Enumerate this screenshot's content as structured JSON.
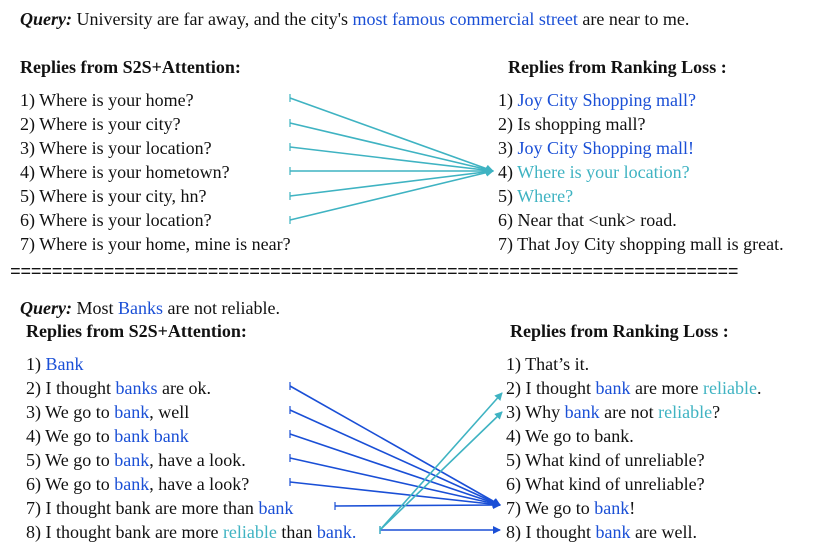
{
  "colors": {
    "blue": "#1a4fd6",
    "teal": "#3fb3c2",
    "text": "#111111"
  },
  "top": {
    "query_label": "Query:",
    "query_segments": [
      {
        "text": "University are far away, and the city's ",
        "color": ""
      },
      {
        "text": "most famous commercial street",
        "color": "b"
      },
      {
        "text": " are near to me.",
        "color": ""
      }
    ],
    "left_header": "Replies from S2S+Attention:",
    "right_header": "Replies from Ranking Loss :",
    "left_items": [
      [
        {
          "text": "1) Where is your home?",
          "color": ""
        }
      ],
      [
        {
          "text": "2) Where is your city?",
          "color": ""
        }
      ],
      [
        {
          "text": "3) Where is your location?",
          "color": ""
        }
      ],
      [
        {
          "text": "4) Where is your hometown?",
          "color": ""
        }
      ],
      [
        {
          "text": "5) Where is your city, hn?",
          "color": ""
        }
      ],
      [
        {
          "text": "6) Where is your location?",
          "color": ""
        }
      ],
      [
        {
          "text": "7) Where is your home, mine is near?",
          "color": ""
        }
      ]
    ],
    "right_items": [
      [
        {
          "text": "1) ",
          "color": ""
        },
        {
          "text": "Joy City Shopping mall?",
          "color": "b"
        }
      ],
      [
        {
          "text": "2) Is shopping mall?",
          "color": ""
        }
      ],
      [
        {
          "text": "3) ",
          "color": ""
        },
        {
          "text": "Joy City Shopping mall!",
          "color": "b"
        }
      ],
      [
        {
          "text": "4) ",
          "color": ""
        },
        {
          "text": "Where is your location?",
          "color": "t"
        }
      ],
      [
        {
          "text": "5) ",
          "color": ""
        },
        {
          "text": "Where?",
          "color": "t"
        }
      ],
      [
        {
          "text": "6) Near that <unk> road.",
          "color": ""
        }
      ],
      [
        {
          "text": "7) That Joy City shopping mall is great.",
          "color": ""
        }
      ]
    ]
  },
  "separator": "======================================================================",
  "bottom": {
    "query_label": "Query:",
    "query_segments": [
      {
        "text": "Most ",
        "color": ""
      },
      {
        "text": "Banks",
        "color": "b"
      },
      {
        "text": " are not reliable.",
        "color": ""
      }
    ],
    "left_header": "Replies from S2S+Attention:",
    "right_header": "Replies from Ranking Loss :",
    "left_items": [
      [
        {
          "text": "1) ",
          "color": ""
        },
        {
          "text": "Bank",
          "color": "b"
        }
      ],
      [
        {
          "text": "2) I thought ",
          "color": ""
        },
        {
          "text": "banks",
          "color": "b"
        },
        {
          "text": " are ok.",
          "color": ""
        }
      ],
      [
        {
          "text": "3) We go to ",
          "color": ""
        },
        {
          "text": "bank",
          "color": "b"
        },
        {
          "text": ", well",
          "color": ""
        }
      ],
      [
        {
          "text": "4) We go to ",
          "color": ""
        },
        {
          "text": "bank bank",
          "color": "b"
        }
      ],
      [
        {
          "text": "5) We go to ",
          "color": ""
        },
        {
          "text": "bank",
          "color": "b"
        },
        {
          "text": ", have a look.",
          "color": ""
        }
      ],
      [
        {
          "text": "6) We go to ",
          "color": ""
        },
        {
          "text": "bank",
          "color": "b"
        },
        {
          "text": ", have a look?",
          "color": ""
        }
      ],
      [
        {
          "text": "7) I thought bank are more than ",
          "color": ""
        },
        {
          "text": "bank",
          "color": "b"
        }
      ],
      [
        {
          "text": "8) I thought bank are more ",
          "color": ""
        },
        {
          "text": "reliable",
          "color": "t"
        },
        {
          "text": " than ",
          "color": ""
        },
        {
          "text": "bank.",
          "color": "b"
        }
      ]
    ],
    "right_items": [
      [
        {
          "text": "1) That’s it.",
          "color": ""
        }
      ],
      [
        {
          "text": "2) I thought ",
          "color": ""
        },
        {
          "text": "bank",
          "color": "b"
        },
        {
          "text": " are more ",
          "color": ""
        },
        {
          "text": "reliable",
          "color": "t"
        },
        {
          "text": ".",
          "color": ""
        }
      ],
      [
        {
          "text": "3) Why ",
          "color": ""
        },
        {
          "text": "bank",
          "color": "b"
        },
        {
          "text": " are not ",
          "color": ""
        },
        {
          "text": "reliable",
          "color": "t"
        },
        {
          "text": "?",
          "color": ""
        }
      ],
      [
        {
          "text": "4) We go to bank.",
          "color": ""
        }
      ],
      [
        {
          "text": "5) What kind of unreliable?",
          "color": ""
        }
      ],
      [
        {
          "text": "6) What kind of unreliable?",
          "color": ""
        }
      ],
      [
        {
          "text": "7) We go to ",
          "color": ""
        },
        {
          "text": "bank",
          "color": "b"
        },
        {
          "text": "!",
          "color": ""
        }
      ],
      [
        {
          "text": "8) I thought ",
          "color": ""
        },
        {
          "text": "bank",
          "color": "b"
        },
        {
          "text": " are well.",
          "color": ""
        }
      ]
    ]
  }
}
